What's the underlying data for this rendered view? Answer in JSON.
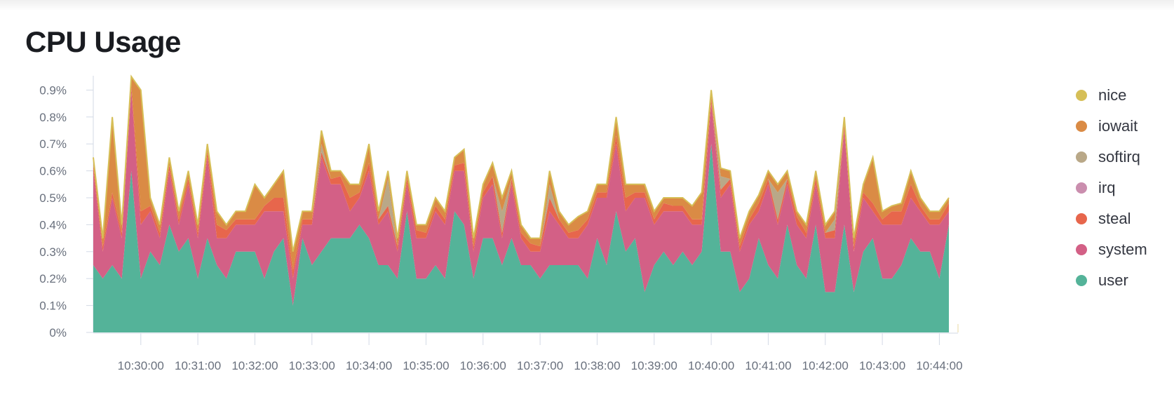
{
  "panel": {
    "title": "CPU Usage"
  },
  "legend": [
    {
      "label": "nice",
      "color": "#d6bf57"
    },
    {
      "label": "iowait",
      "color": "#da8b45"
    },
    {
      "label": "softirq",
      "color": "#b9a888"
    },
    {
      "label": "irq",
      "color": "#ca8eae"
    },
    {
      "label": "steal",
      "color": "#e7664c"
    },
    {
      "label": "system",
      "color": "#d36086"
    },
    {
      "label": "user",
      "color": "#54b399"
    }
  ],
  "chart_data": {
    "type": "area",
    "stacked": true,
    "x_start": "10:29:10",
    "x_step_seconds": 10,
    "x_ticks": [
      "10:30:00",
      "10:31:00",
      "10:32:00",
      "10:33:00",
      "10:34:00",
      "10:35:00",
      "10:36:00",
      "10:37:00",
      "10:38:00",
      "10:39:00",
      "10:40:00",
      "10:41:00",
      "10:42:00",
      "10:43:00",
      "10:44:00"
    ],
    "y_ticks": [
      "0%",
      "0.1%",
      "0.2%",
      "0.3%",
      "0.4%",
      "0.5%",
      "0.6%",
      "0.7%",
      "0.8%",
      "0.9%"
    ],
    "ylim": [
      0,
      0.95
    ],
    "y_unit": "%",
    "series": [
      {
        "name": "user",
        "color": "#54b399",
        "values": [
          0.25,
          0.2,
          0.25,
          0.2,
          0.6,
          0.2,
          0.3,
          0.25,
          0.4,
          0.3,
          0.35,
          0.2,
          0.35,
          0.25,
          0.2,
          0.3,
          0.3,
          0.3,
          0.2,
          0.3,
          0.35,
          0.1,
          0.35,
          0.25,
          0.3,
          0.35,
          0.35,
          0.35,
          0.4,
          0.35,
          0.25,
          0.25,
          0.2,
          0.45,
          0.2,
          0.2,
          0.25,
          0.2,
          0.45,
          0.4,
          0.2,
          0.35,
          0.35,
          0.25,
          0.35,
          0.25,
          0.25,
          0.2,
          0.25,
          0.25,
          0.25,
          0.25,
          0.2,
          0.35,
          0.25,
          0.45,
          0.3,
          0.35,
          0.15,
          0.25,
          0.3,
          0.25,
          0.3,
          0.25,
          0.3,
          0.7,
          0.3,
          0.3,
          0.15,
          0.2,
          0.35,
          0.25,
          0.2,
          0.4,
          0.25,
          0.2,
          0.4,
          0.15,
          0.15,
          0.4,
          0.15,
          0.3,
          0.35,
          0.2,
          0.2,
          0.25,
          0.35,
          0.3,
          0.3,
          0.2,
          0.4
        ]
      },
      {
        "name": "system",
        "color": "#d36086",
        "values": [
          0.35,
          0.1,
          0.25,
          0.15,
          0.3,
          0.2,
          0.15,
          0.1,
          0.2,
          0.1,
          0.2,
          0.15,
          0.3,
          0.1,
          0.15,
          0.1,
          0.1,
          0.1,
          0.25,
          0.15,
          0.1,
          0.1,
          0.05,
          0.15,
          0.35,
          0.2,
          0.2,
          0.1,
          0.1,
          0.25,
          0.15,
          0.2,
          0.1,
          0.1,
          0.15,
          0.15,
          0.2,
          0.2,
          0.15,
          0.2,
          0.1,
          0.15,
          0.2,
          0.1,
          0.2,
          0.1,
          0.05,
          0.1,
          0.2,
          0.15,
          0.1,
          0.1,
          0.2,
          0.15,
          0.25,
          0.25,
          0.15,
          0.15,
          0.35,
          0.15,
          0.15,
          0.2,
          0.15,
          0.15,
          0.1,
          0.15,
          0.2,
          0.25,
          0.15,
          0.2,
          0.1,
          0.3,
          0.2,
          0.15,
          0.15,
          0.15,
          0.15,
          0.2,
          0.2,
          0.35,
          0.15,
          0.2,
          0.1,
          0.2,
          0.2,
          0.15,
          0.15,
          0.15,
          0.1,
          0.2,
          0.05
        ]
      },
      {
        "name": "steal",
        "color": "#e7664c",
        "values": [
          0.02,
          0.02,
          0.02,
          0.02,
          0.02,
          0.05,
          0.02,
          0.02,
          0.02,
          0.02,
          0.02,
          0.02,
          0.02,
          0.05,
          0.03,
          0.02,
          0.02,
          0.02,
          0.02,
          0.05,
          0.05,
          0.03,
          0.02,
          0.02,
          0.02,
          0.02,
          0.03,
          0.05,
          0.02,
          0.03,
          0.02,
          0.02,
          0.02,
          0.02,
          0.03,
          0.02,
          0.02,
          0.02,
          0.02,
          0.03,
          0.02,
          0.02,
          0.03,
          0.02,
          0.02,
          0.02,
          0.03,
          0.02,
          0.05,
          0.02,
          0.02,
          0.03,
          0.02,
          0.02,
          0.02,
          0.03,
          0.05,
          0.02,
          0.02,
          0.02,
          0.03,
          0.02,
          0.02,
          0.02,
          0.02,
          0.02,
          0.03,
          0.02,
          0.02,
          0.02,
          0.03,
          0.02,
          0.02,
          0.02,
          0.03,
          0.02,
          0.02,
          0.02,
          0.03,
          0.02,
          0.02,
          0.02,
          0.03,
          0.02,
          0.05,
          0.05,
          0.05,
          0.02,
          0.02,
          0.02,
          0.03
        ]
      },
      {
        "name": "irq",
        "color": "#ca8eae",
        "values": [
          0,
          0,
          0,
          0,
          0,
          0,
          0,
          0,
          0,
          0,
          0,
          0,
          0,
          0,
          0,
          0,
          0,
          0,
          0,
          0,
          0,
          0,
          0,
          0,
          0,
          0,
          0,
          0,
          0,
          0,
          0,
          0,
          0,
          0,
          0,
          0,
          0,
          0,
          0,
          0,
          0,
          0,
          0,
          0,
          0,
          0,
          0,
          0,
          0,
          0,
          0,
          0,
          0,
          0,
          0,
          0,
          0,
          0,
          0,
          0,
          0,
          0,
          0,
          0,
          0,
          0,
          0,
          0,
          0,
          0,
          0,
          0,
          0,
          0,
          0,
          0,
          0,
          0,
          0,
          0,
          0,
          0,
          0,
          0,
          0,
          0,
          0,
          0,
          0,
          0,
          0
        ]
      },
      {
        "name": "softirq",
        "color": "#b9a888",
        "values": [
          0,
          0,
          0,
          0,
          0,
          0,
          0,
          0,
          0,
          0,
          0,
          0,
          0,
          0,
          0,
          0,
          0,
          0,
          0,
          0,
          0,
          0,
          0,
          0,
          0.03,
          0,
          0,
          0,
          0,
          0,
          0,
          0.1,
          0,
          0,
          0,
          0,
          0,
          0,
          0,
          0,
          0,
          0,
          0,
          0.08,
          0,
          0,
          0,
          0,
          0.05,
          0,
          0,
          0,
          0,
          0,
          0,
          0,
          0,
          0,
          0,
          0,
          0,
          0,
          0,
          0,
          0,
          0,
          0.05,
          0,
          0,
          0,
          0,
          0,
          0.1,
          0,
          0,
          0,
          0,
          0,
          0.04,
          0,
          0,
          0,
          0,
          0,
          0,
          0,
          0,
          0,
          0,
          0,
          0
        ]
      },
      {
        "name": "iowait",
        "color": "#da8b45",
        "values": [
          0.03,
          0.03,
          0.28,
          0.03,
          0.03,
          0.45,
          0.03,
          0.03,
          0.03,
          0.03,
          0.03,
          0.03,
          0.03,
          0.05,
          0.02,
          0.03,
          0.03,
          0.13,
          0.03,
          0.05,
          0.1,
          0.07,
          0.03,
          0.03,
          0.05,
          0.03,
          0.02,
          0.05,
          0.03,
          0.07,
          0.03,
          0.03,
          0.03,
          0.03,
          0.02,
          0.03,
          0.03,
          0.03,
          0.03,
          0.05,
          0.03,
          0.03,
          0.05,
          0.05,
          0.03,
          0.03,
          0.02,
          0.03,
          0.05,
          0.03,
          0.03,
          0.05,
          0.03,
          0.03,
          0.03,
          0.07,
          0.05,
          0.03,
          0.03,
          0.03,
          0.02,
          0.03,
          0.03,
          0.05,
          0.1,
          0.03,
          0.03,
          0.03,
          0.03,
          0.03,
          0.03,
          0.03,
          0.03,
          0.03,
          0.02,
          0.03,
          0.03,
          0.03,
          0.03,
          0.03,
          0.03,
          0.03,
          0.17,
          0.03,
          0.02,
          0.03,
          0.05,
          0.03,
          0.03,
          0.03,
          0.02
        ]
      },
      {
        "name": "nice",
        "color": "#d6bf57",
        "values": [
          0,
          0,
          0,
          0,
          0,
          0,
          0,
          0,
          0,
          0,
          0,
          0,
          0,
          0,
          0,
          0,
          0,
          0,
          0,
          0,
          0,
          0,
          0,
          0,
          0,
          0,
          0,
          0,
          0,
          0,
          0,
          0,
          0,
          0,
          0,
          0,
          0,
          0,
          0,
          0,
          0,
          0,
          0,
          0,
          0,
          0,
          0,
          0,
          0,
          0,
          0,
          0,
          0,
          0,
          0,
          0,
          0,
          0,
          0,
          0,
          0,
          0,
          0,
          0,
          0,
          0,
          0,
          0,
          0,
          0,
          0,
          0,
          0,
          0,
          0,
          0,
          0,
          0,
          0,
          0,
          0,
          0,
          0,
          0,
          0,
          0,
          0,
          0,
          0,
          0,
          0
        ]
      }
    ],
    "grid": false,
    "legend_position": "right"
  }
}
